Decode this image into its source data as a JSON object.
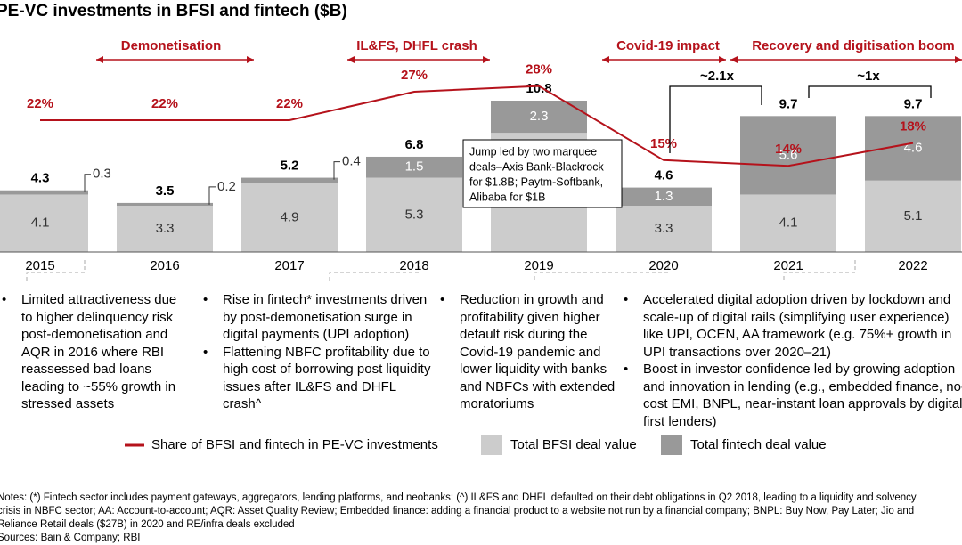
{
  "title": "PE-VC investments in BFSI and fintech ($B)",
  "chart_data": {
    "type": "combo",
    "categories": [
      "2015",
      "2016",
      "2017",
      "2018",
      "2019",
      "2020",
      "2021",
      "2022"
    ],
    "series": [
      {
        "name": "Total BFSI deal value",
        "color": "#cccccc",
        "values": [
          4.1,
          3.3,
          4.9,
          5.3,
          8.5,
          3.3,
          4.1,
          5.1
        ]
      },
      {
        "name": "Total fintech deal value",
        "color": "#999999",
        "values": [
          0.3,
          0.2,
          0.4,
          1.5,
          2.3,
          1.3,
          5.6,
          4.6
        ]
      }
    ],
    "totals": [
      4.3,
      3.5,
      5.2,
      6.8,
      10.8,
      4.6,
      9.7,
      9.7
    ],
    "line": {
      "name": "Share of BFSI and fintech in PE-VC investments",
      "color": "#b5121b",
      "values": [
        22,
        22,
        22,
        27,
        28,
        15,
        14,
        18
      ],
      "value_labels": [
        "22%",
        "22%",
        "22%",
        "27%",
        "28%",
        "15%",
        "14%",
        "18%"
      ]
    },
    "periods": [
      "Demonetisation",
      "IL&FS, DHFL crash",
      "Covid-19 impact",
      "Recovery and digitisation boom"
    ],
    "growth": [
      "~2.1x",
      "~1x"
    ],
    "callout": [
      "Jump led by two marquee",
      "deals–Axis Bank-Blackrock",
      "for $1.8B; Paytm-Softbank,",
      "Alibaba for $1B"
    ]
  },
  "commentary": [
    [
      "Limited attractiveness due to higher delinquency risk post-demonetisation and AQR in 2016 where RBI reassessed bad loans leading to ~55% growth in stressed assets"
    ],
    [
      "Rise in fintech* investments driven by post-demonetisation surge in digital payments (UPI adoption)",
      "Flattening NBFC profitability due to high cost of borrowing post liquidity issues after IL&FS and DHFL crash^"
    ],
    [
      "Reduction in growth and profitability given higher default risk during the Covid-19 pandemic and lower liquidity with banks and NBFCs with extended moratoriums"
    ],
    [
      "Accelerated digital adoption driven by lockdown and scale-up of digital rails (simplifying user experience) like UPI, OCEN, AA framework (e.g. 75%+ growth in UPI transactions over 2020–21)",
      "Boost in investor confidence led by growing adoption and innovation in lending (e.g., embedded finance, no-cost EMI, BNPL, near-instant loan approvals by digital first lenders)"
    ]
  ],
  "notes": [
    "Notes: (*) Fintech sector includes payment gateways, aggregators, lending platforms, and neobanks; (^) IL&FS and DHFL defaulted on their debt obligations in Q2 2018, leading to a liquidity and solvency",
    "crisis in NBFC sector; AA: Account-to-account; AQR: Asset Quality Review; Embedded finance: adding a financial product to a website not run by a financial company; BNPL: Buy Now, Pay Later; Jio and",
    "Reliance Retail deals ($27B) in 2020 and RE/infra deals excluded"
  ],
  "sources": "Sources: Bain & Company; RBI"
}
